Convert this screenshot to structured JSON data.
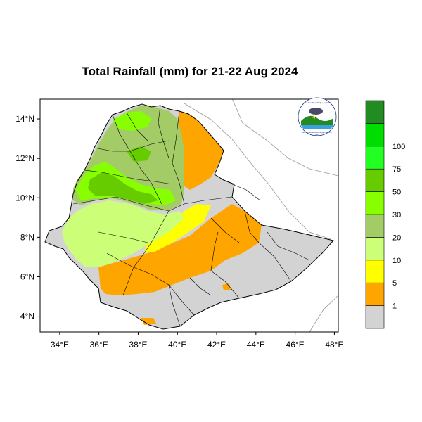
{
  "title": "Total Rainfall (mm) for 21-22 Aug 2024",
  "map": {
    "lon_range": [
      33,
      48.2
    ],
    "lat_range": [
      3.2,
      15
    ],
    "x_ticks": [
      {
        "value": 34,
        "label": "34°E"
      },
      {
        "value": 36,
        "label": "36°E"
      },
      {
        "value": 38,
        "label": "38°E"
      },
      {
        "value": 40,
        "label": "40°E"
      },
      {
        "value": 42,
        "label": "42°E"
      },
      {
        "value": 44,
        "label": "44°E"
      },
      {
        "value": 46,
        "label": "46°E"
      },
      {
        "value": 48,
        "label": "48°E"
      }
    ],
    "y_ticks": [
      {
        "value": 4,
        "label": "4°N"
      },
      {
        "value": 6,
        "label": "6°N"
      },
      {
        "value": 8,
        "label": "8°N"
      },
      {
        "value": 10,
        "label": "10°N"
      },
      {
        "value": 12,
        "label": "12°N"
      },
      {
        "value": 14,
        "label": "14°N"
      }
    ]
  },
  "colorbar": {
    "bins": [
      {
        "color": "#d3d3d3"
      },
      {
        "color": "#ffa500"
      },
      {
        "color": "#ffff00"
      },
      {
        "color": "#ccff77"
      },
      {
        "color": "#a3cc66"
      },
      {
        "color": "#88ff00"
      },
      {
        "color": "#66cc00"
      },
      {
        "color": "#22ff22"
      },
      {
        "color": "#00dd00"
      },
      {
        "color": "#228b22"
      }
    ],
    "labels": [
      "1",
      "5",
      "10",
      "20",
      "30",
      "50",
      "75",
      "100"
    ]
  },
  "logo": {
    "top_text": "ኢትዮጵያ ሚቲዎሮሎጂ ኢንስቲትዩት",
    "bottom_text": "Ethiopian Meteorology Institute",
    "year_text": "1951"
  }
}
